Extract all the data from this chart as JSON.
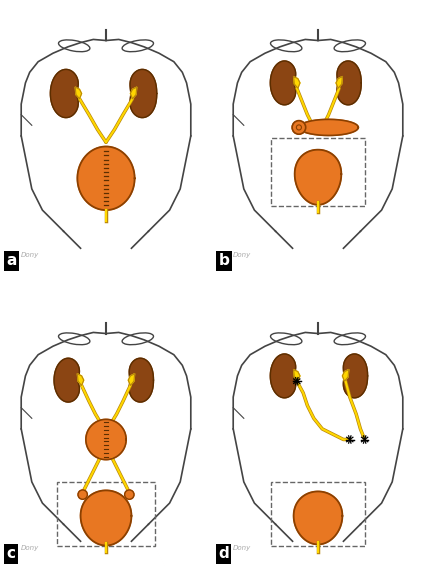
{
  "background": "#ffffff",
  "kidney_color": "#8B4513",
  "kidney_outline": "#5C2E00",
  "pelvis_color": "#FFD700",
  "pelvis_outline": "#B8860B",
  "bladder_color": "#E87722",
  "bladder_outline": "#8B4000",
  "body_outline": "#444444",
  "ureter_color": "#FFD700",
  "ureter_outline": "#B8860B",
  "label_bg": "#000000",
  "label_fg": "#ffffff",
  "dashed_rect_color": "#666666",
  "stitch_color": "#5C2E00",
  "sig_color": "#aaaaaa"
}
